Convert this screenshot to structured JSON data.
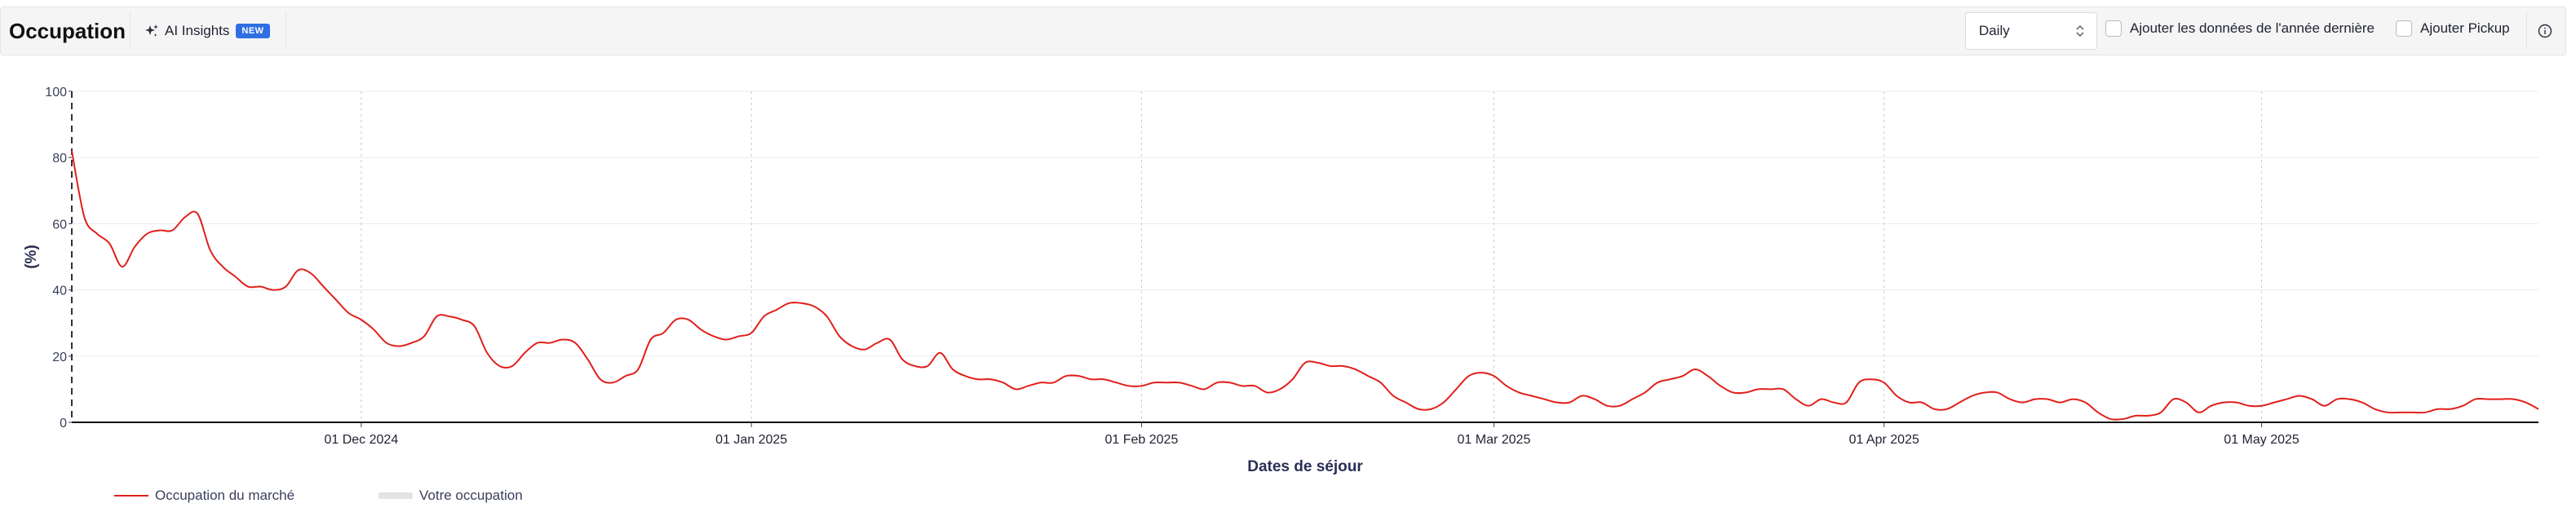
{
  "header": {
    "title": "Occupation",
    "ai_insights_label": "AI Insights",
    "ai_badge": "NEW",
    "granularity_selected": "Daily",
    "last_year_label": "Ajouter les données de l'année dernière",
    "pickup_label": "Ajouter Pickup"
  },
  "colors": {
    "series_market": "#e0201b",
    "series_yours": "#e3e3e6",
    "accent": "#2f6fe3"
  },
  "chart_data": {
    "type": "line",
    "xlabel": "Dates de séjour",
    "ylabel": "(%)",
    "ylim": [
      0,
      100
    ],
    "y_ticks": [
      "0",
      "20",
      "40",
      "60",
      "80",
      "100"
    ],
    "xlim": [
      "2024-11-08",
      "2025-05-23"
    ],
    "x_ticks": [
      {
        "date": "2024-12-01",
        "label": "01 Dec 2024"
      },
      {
        "date": "2025-01-01",
        "label": "01 Jan 2025"
      },
      {
        "date": "2025-02-01",
        "label": "01 Feb 2025"
      },
      {
        "date": "2025-03-01",
        "label": "01 Mar 2025"
      },
      {
        "date": "2025-04-01",
        "label": "01 Apr 2025"
      },
      {
        "date": "2025-05-01",
        "label": "01 May 2025"
      }
    ],
    "grid": "horizontal",
    "legend_position": "bottom-left",
    "series": [
      {
        "name": "Occupation du marché",
        "points": [
          [
            "2024-11-08",
            82
          ],
          [
            "2024-11-09",
            62
          ],
          [
            "2024-11-10",
            57
          ],
          [
            "2024-11-11",
            54
          ],
          [
            "2024-11-12",
            47
          ],
          [
            "2024-11-13",
            53
          ],
          [
            "2024-11-14",
            57
          ],
          [
            "2024-11-15",
            58
          ],
          [
            "2024-11-16",
            58
          ],
          [
            "2024-11-17",
            62
          ],
          [
            "2024-11-18",
            63
          ],
          [
            "2024-11-19",
            52
          ],
          [
            "2024-11-20",
            47
          ],
          [
            "2024-11-21",
            44
          ],
          [
            "2024-11-22",
            41
          ],
          [
            "2024-11-23",
            41
          ],
          [
            "2024-11-24",
            40
          ],
          [
            "2024-11-25",
            41
          ],
          [
            "2024-11-26",
            46
          ],
          [
            "2024-11-27",
            45
          ],
          [
            "2024-11-28",
            41
          ],
          [
            "2024-11-29",
            37
          ],
          [
            "2024-11-30",
            33
          ],
          [
            "2024-12-01",
            31
          ],
          [
            "2024-12-02",
            28
          ],
          [
            "2024-12-03",
            24
          ],
          [
            "2024-12-04",
            23
          ],
          [
            "2024-12-05",
            24
          ],
          [
            "2024-12-06",
            26
          ],
          [
            "2024-12-07",
            32
          ],
          [
            "2024-12-08",
            32
          ],
          [
            "2024-12-09",
            31
          ],
          [
            "2024-12-10",
            29
          ],
          [
            "2024-12-11",
            21
          ],
          [
            "2024-12-12",
            17
          ],
          [
            "2024-12-13",
            17
          ],
          [
            "2024-12-14",
            21
          ],
          [
            "2024-12-15",
            24
          ],
          [
            "2024-12-16",
            24
          ],
          [
            "2024-12-17",
            25
          ],
          [
            "2024-12-18",
            24
          ],
          [
            "2024-12-19",
            19
          ],
          [
            "2024-12-20",
            13
          ],
          [
            "2024-12-21",
            12
          ],
          [
            "2024-12-22",
            14
          ],
          [
            "2024-12-23",
            16
          ],
          [
            "2024-12-24",
            25
          ],
          [
            "2024-12-25",
            27
          ],
          [
            "2024-12-26",
            31
          ],
          [
            "2024-12-27",
            31
          ],
          [
            "2024-12-28",
            28
          ],
          [
            "2024-12-29",
            26
          ],
          [
            "2024-12-30",
            25
          ],
          [
            "2024-12-31",
            26
          ],
          [
            "2025-01-01",
            27
          ],
          [
            "2025-01-02",
            32
          ],
          [
            "2025-01-03",
            34
          ],
          [
            "2025-01-04",
            36
          ],
          [
            "2025-01-05",
            36
          ],
          [
            "2025-01-06",
            35
          ],
          [
            "2025-01-07",
            32
          ],
          [
            "2025-01-08",
            26
          ],
          [
            "2025-01-09",
            23
          ],
          [
            "2025-01-10",
            22
          ],
          [
            "2025-01-11",
            24
          ],
          [
            "2025-01-12",
            25
          ],
          [
            "2025-01-13",
            19
          ],
          [
            "2025-01-14",
            17
          ],
          [
            "2025-01-15",
            17
          ],
          [
            "2025-01-16",
            21
          ],
          [
            "2025-01-17",
            16
          ],
          [
            "2025-01-18",
            14
          ],
          [
            "2025-01-19",
            13
          ],
          [
            "2025-01-20",
            13
          ],
          [
            "2025-01-21",
            12
          ],
          [
            "2025-01-22",
            10
          ],
          [
            "2025-01-23",
            11
          ],
          [
            "2025-01-24",
            12
          ],
          [
            "2025-01-25",
            12
          ],
          [
            "2025-01-26",
            14
          ],
          [
            "2025-01-27",
            14
          ],
          [
            "2025-01-28",
            13
          ],
          [
            "2025-01-29",
            13
          ],
          [
            "2025-01-30",
            12
          ],
          [
            "2025-01-31",
            11
          ],
          [
            "2025-02-01",
            11
          ],
          [
            "2025-02-02",
            12
          ],
          [
            "2025-02-03",
            12
          ],
          [
            "2025-02-04",
            12
          ],
          [
            "2025-02-05",
            11
          ],
          [
            "2025-02-06",
            10
          ],
          [
            "2025-02-07",
            12
          ],
          [
            "2025-02-08",
            12
          ],
          [
            "2025-02-09",
            11
          ],
          [
            "2025-02-10",
            11
          ],
          [
            "2025-02-11",
            9
          ],
          [
            "2025-02-12",
            10
          ],
          [
            "2025-02-13",
            13
          ],
          [
            "2025-02-14",
            18
          ],
          [
            "2025-02-15",
            18
          ],
          [
            "2025-02-16",
            17
          ],
          [
            "2025-02-17",
            17
          ],
          [
            "2025-02-18",
            16
          ],
          [
            "2025-02-19",
            14
          ],
          [
            "2025-02-20",
            12
          ],
          [
            "2025-02-21",
            8
          ],
          [
            "2025-02-22",
            6
          ],
          [
            "2025-02-23",
            4
          ],
          [
            "2025-02-24",
            4
          ],
          [
            "2025-02-25",
            6
          ],
          [
            "2025-02-26",
            10
          ],
          [
            "2025-02-27",
            14
          ],
          [
            "2025-02-28",
            15
          ],
          [
            "2025-03-01",
            14
          ],
          [
            "2025-03-02",
            11
          ],
          [
            "2025-03-03",
            9
          ],
          [
            "2025-03-04",
            8
          ],
          [
            "2025-03-05",
            7
          ],
          [
            "2025-03-06",
            6
          ],
          [
            "2025-03-07",
            6
          ],
          [
            "2025-03-08",
            8
          ],
          [
            "2025-03-09",
            7
          ],
          [
            "2025-03-10",
            5
          ],
          [
            "2025-03-11",
            5
          ],
          [
            "2025-03-12",
            7
          ],
          [
            "2025-03-13",
            9
          ],
          [
            "2025-03-14",
            12
          ],
          [
            "2025-03-15",
            13
          ],
          [
            "2025-03-16",
            14
          ],
          [
            "2025-03-17",
            16
          ],
          [
            "2025-03-18",
            14
          ],
          [
            "2025-03-19",
            11
          ],
          [
            "2025-03-20",
            9
          ],
          [
            "2025-03-21",
            9
          ],
          [
            "2025-03-22",
            10
          ],
          [
            "2025-03-23",
            10
          ],
          [
            "2025-03-24",
            10
          ],
          [
            "2025-03-25",
            7
          ],
          [
            "2025-03-26",
            5
          ],
          [
            "2025-03-27",
            7
          ],
          [
            "2025-03-28",
            6
          ],
          [
            "2025-03-29",
            6
          ],
          [
            "2025-03-30",
            12
          ],
          [
            "2025-03-31",
            13
          ],
          [
            "2025-04-01",
            12
          ],
          [
            "2025-04-02",
            8
          ],
          [
            "2025-04-03",
            6
          ],
          [
            "2025-04-04",
            6
          ],
          [
            "2025-04-05",
            4
          ],
          [
            "2025-04-06",
            4
          ],
          [
            "2025-04-07",
            6
          ],
          [
            "2025-04-08",
            8
          ],
          [
            "2025-04-09",
            9
          ],
          [
            "2025-04-10",
            9
          ],
          [
            "2025-04-11",
            7
          ],
          [
            "2025-04-12",
            6
          ],
          [
            "2025-04-13",
            7
          ],
          [
            "2025-04-14",
            7
          ],
          [
            "2025-04-15",
            6
          ],
          [
            "2025-04-16",
            7
          ],
          [
            "2025-04-17",
            6
          ],
          [
            "2025-04-18",
            3
          ],
          [
            "2025-04-19",
            1
          ],
          [
            "2025-04-20",
            1
          ],
          [
            "2025-04-21",
            2
          ],
          [
            "2025-04-22",
            2
          ],
          [
            "2025-04-23",
            3
          ],
          [
            "2025-04-24",
            7
          ],
          [
            "2025-04-25",
            6
          ],
          [
            "2025-04-26",
            3
          ],
          [
            "2025-04-27",
            5
          ],
          [
            "2025-04-28",
            6
          ],
          [
            "2025-04-29",
            6
          ],
          [
            "2025-04-30",
            5
          ],
          [
            "2025-05-01",
            5
          ],
          [
            "2025-05-02",
            6
          ],
          [
            "2025-05-03",
            7
          ],
          [
            "2025-05-04",
            8
          ],
          [
            "2025-05-05",
            7
          ],
          [
            "2025-05-06",
            5
          ],
          [
            "2025-05-07",
            7
          ],
          [
            "2025-05-08",
            7
          ],
          [
            "2025-05-09",
            6
          ],
          [
            "2025-05-10",
            4
          ],
          [
            "2025-05-11",
            3
          ],
          [
            "2025-05-12",
            3
          ],
          [
            "2025-05-13",
            3
          ],
          [
            "2025-05-14",
            3
          ],
          [
            "2025-05-15",
            4
          ],
          [
            "2025-05-16",
            4
          ],
          [
            "2025-05-17",
            5
          ],
          [
            "2025-05-18",
            7
          ],
          [
            "2025-05-19",
            7
          ],
          [
            "2025-05-20",
            7
          ],
          [
            "2025-05-21",
            7
          ],
          [
            "2025-05-22",
            6
          ],
          [
            "2025-05-23",
            4
          ]
        ]
      },
      {
        "name": "Votre occupation",
        "points": []
      }
    ]
  }
}
